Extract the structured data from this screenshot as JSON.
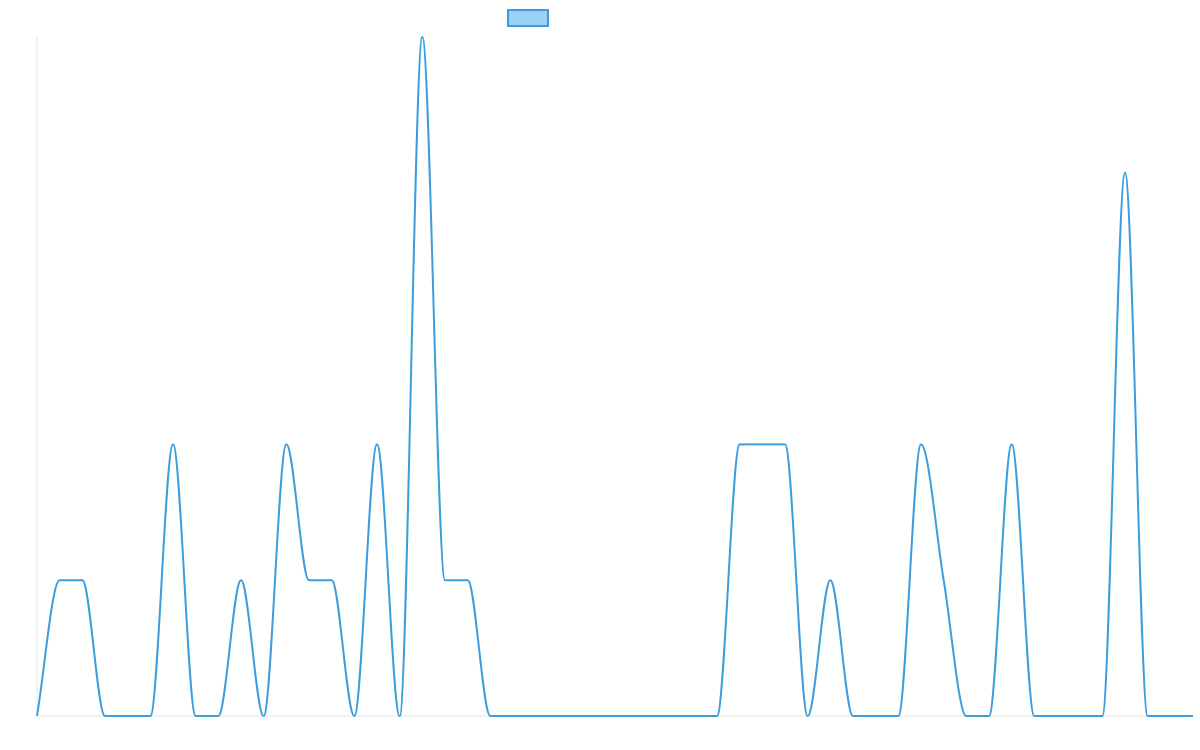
{
  "chart_data": {
    "type": "line",
    "title": "",
    "xlabel": "",
    "ylabel": "",
    "x": [
      0,
      1,
      2,
      3,
      4,
      5,
      6,
      7,
      8,
      9,
      10,
      11,
      12,
      13,
      14,
      15,
      16,
      17,
      18,
      19,
      20,
      21,
      22,
      23,
      24,
      25,
      26,
      27,
      28,
      29,
      30,
      31,
      32,
      33,
      34,
      35,
      36,
      37,
      38,
      39,
      40,
      41,
      42,
      43,
      44,
      45,
      46,
      47,
      48,
      49,
      50,
      51
    ],
    "series": [
      {
        "name": "",
        "values": [
          0,
          1,
          1,
          0,
          0,
          0,
          2,
          0,
          0,
          1,
          0,
          2,
          1,
          1,
          0,
          2,
          0,
          5,
          1,
          1,
          0,
          0,
          0,
          0,
          0,
          0,
          0,
          0,
          0,
          0,
          0,
          2,
          2,
          2,
          0,
          1,
          0,
          0,
          0,
          2,
          1,
          0,
          0,
          2,
          0,
          0,
          0,
          0,
          4,
          0,
          0,
          0
        ]
      }
    ],
    "ylim": [
      0,
      5
    ],
    "grid": false,
    "legend": "top-center",
    "colors": {
      "line": "#3b9ddd",
      "legend_fill": "#9bd0f5",
      "axis": "#e6e6e6"
    }
  }
}
